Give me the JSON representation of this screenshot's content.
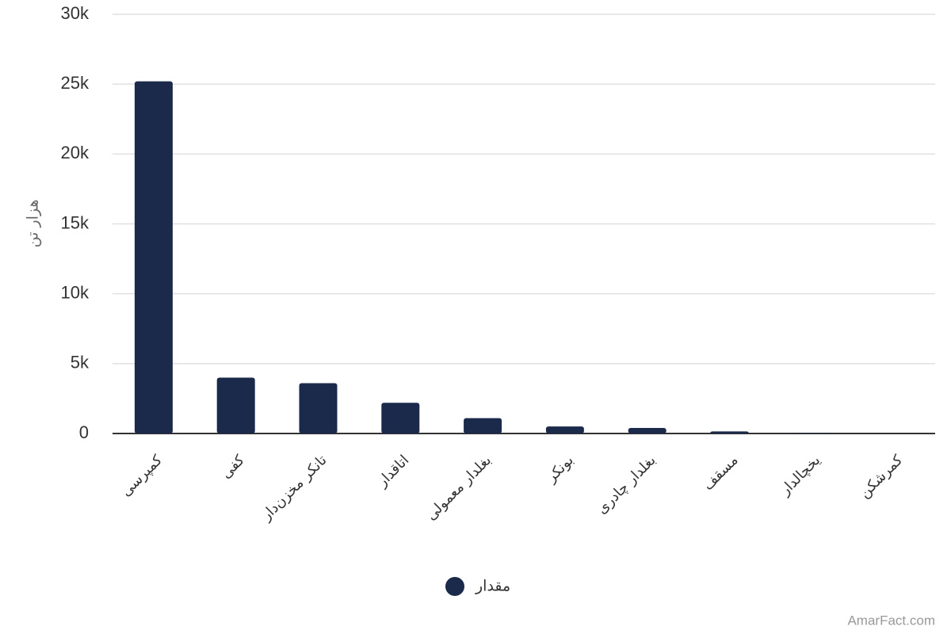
{
  "chart_data": {
    "type": "bar",
    "y_label": "هزار تن",
    "categories": [
      "کمپرسی",
      "کفی",
      "تانکر مخزن‌دار",
      "اتاقدار",
      "بغلدار معمولی",
      "بونکر",
      "بغلدار چادری",
      "مسقف",
      "یخچالدار",
      "کمرشکن"
    ],
    "series": [
      {
        "name": "مقدار",
        "color": "#1b2a4a",
        "values": [
          25200,
          4000,
          3600,
          2200,
          1100,
          500,
          400,
          150,
          30,
          10
        ]
      }
    ],
    "ylim": [
      0,
      30000
    ],
    "yticks": [
      0,
      {
        "value": 5000,
        "label": "5k"
      },
      {
        "value": 10000,
        "label": "10k"
      },
      {
        "value": 15000,
        "label": "15k"
      },
      {
        "value": 20000,
        "label": "20k"
      },
      {
        "value": 25000,
        "label": "25k"
      },
      {
        "value": 30000,
        "label": "30k"
      }
    ],
    "grid": true,
    "legend": "bottom",
    "watermark": "AmarFact.com"
  }
}
